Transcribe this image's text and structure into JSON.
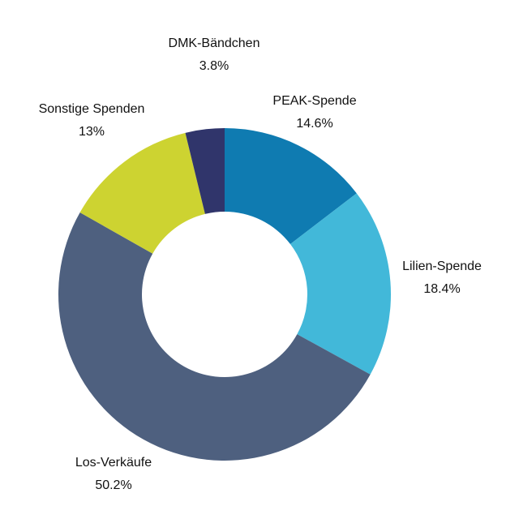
{
  "chart_data": {
    "type": "pie",
    "donut": true,
    "title": "",
    "legend": "none",
    "slices": [
      {
        "label": "PEAK-Spende",
        "value": 14.6,
        "value_label": "14.6%",
        "color": "#0f7bb1"
      },
      {
        "label": "Lilien-Spende",
        "value": 18.4,
        "value_label": "18.4%",
        "color": "#42b8d9"
      },
      {
        "label": "Los-Verkäufe",
        "value": 50.2,
        "value_label": "50.2%",
        "color": "#4e607f"
      },
      {
        "label": "Sonstige Spenden",
        "value": 13,
        "value_label": "13%",
        "color": "#cdd331"
      },
      {
        "label": "DMK-Bändchen",
        "value": 3.8,
        "value_label": "3.8%",
        "color": "#30356b"
      }
    ]
  }
}
